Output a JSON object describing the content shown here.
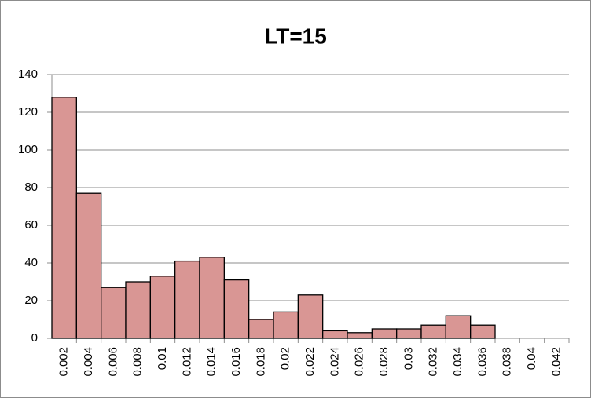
{
  "chart_data": {
    "type": "bar",
    "title": "LT=15",
    "categories": [
      "0.002",
      "0.004",
      "0.006",
      "0.008",
      "0.01",
      "0.012",
      "0.014",
      "0.016",
      "0.018",
      "0.02",
      "0.022",
      "0.024",
      "0.026",
      "0.028",
      "0.03",
      "0.032",
      "0.034",
      "0.036",
      "0.038",
      "0.04",
      "0.042"
    ],
    "values": [
      128,
      77,
      27,
      30,
      33,
      41,
      43,
      31,
      10,
      14,
      23,
      4,
      3,
      5,
      5,
      7,
      12,
      7,
      0,
      0,
      0
    ],
    "color": "#d99694",
    "ylim": [
      0,
      140
    ],
    "yticks": [
      0,
      20,
      40,
      60,
      80,
      100,
      120,
      140
    ],
    "grid": true
  }
}
